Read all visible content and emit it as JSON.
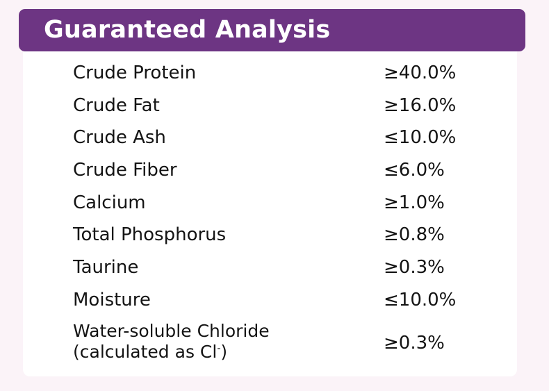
{
  "header": {
    "title": "Guaranteed Analysis"
  },
  "analysis": {
    "rows": [
      {
        "nutrient": "Crude Protein",
        "value": "≥40.0%"
      },
      {
        "nutrient": "Crude Fat",
        "value": "≥16.0%"
      },
      {
        "nutrient": "Crude Ash",
        "value": "≤10.0%"
      },
      {
        "nutrient": "Crude Fiber",
        "value": "≤6.0%"
      },
      {
        "nutrient": "Calcium",
        "value": "≥1.0%"
      },
      {
        "nutrient": "Total Phosphorus",
        "value": "≥0.8%"
      },
      {
        "nutrient": "Taurine",
        "value": "≥0.3%"
      },
      {
        "nutrient": "Moisture",
        "value": "≤10.0%"
      },
      {
        "nutrient_line1": "Water-soluble Chloride",
        "nutrient_line2_prefix": "(calculated as Cl",
        "nutrient_line2_superscript": "-",
        "nutrient_line2_suffix": ")",
        "value": "≥0.3%"
      }
    ]
  },
  "colors": {
    "header_background": "#6d3583",
    "header_text": "#ffffff",
    "page_background": "#fbf3f8",
    "card_background": "#ffffff",
    "text": "#141414"
  }
}
